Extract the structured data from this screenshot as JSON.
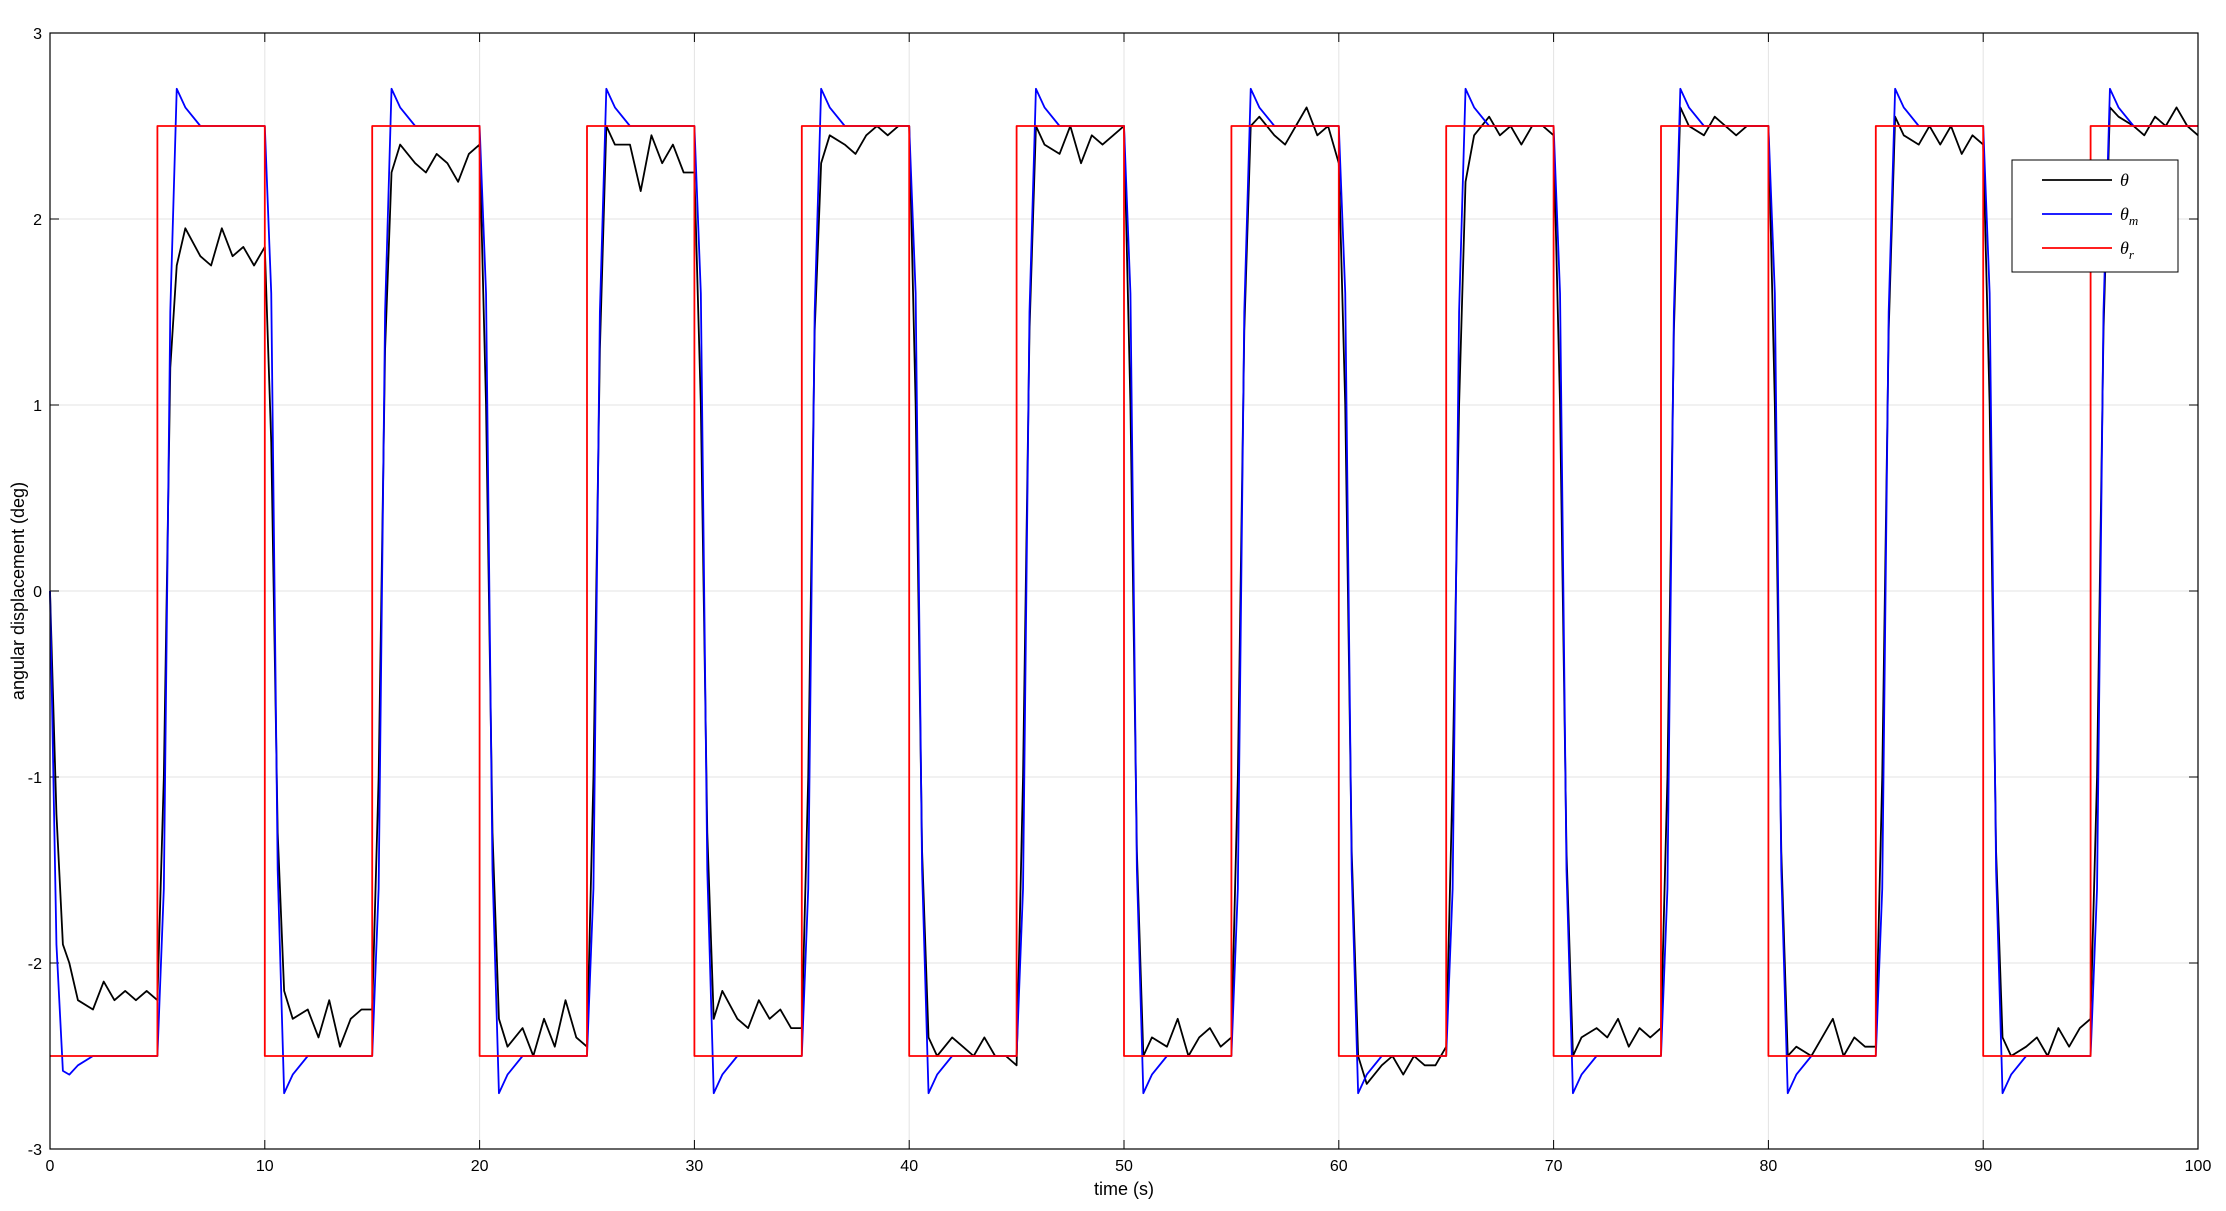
{
  "chart_data": {
    "type": "line",
    "xlabel": "time (s)",
    "ylabel": "angular displacement (deg)",
    "xlim": [
      0,
      100
    ],
    "ylim": [
      -3,
      3
    ],
    "xticks": [
      0,
      10,
      20,
      30,
      40,
      50,
      60,
      70,
      80,
      90,
      100
    ],
    "yticks": [
      -3,
      -2,
      -1,
      0,
      1,
      2,
      3
    ],
    "grid": true,
    "legend": "upper right",
    "x": [
      0,
      0.3,
      0.6,
      0.9,
      1.3,
      2,
      2.5,
      3,
      3.5,
      4,
      4.5,
      5,
      5.3,
      5.6,
      5.9,
      6.3,
      7,
      7.5,
      8,
      8.5,
      9,
      9.5,
      10,
      10.3,
      10.6,
      10.9,
      11.3,
      12,
      12.5,
      13,
      13.5,
      14,
      14.5,
      15,
      15.3,
      15.6,
      15.9,
      16.3,
      17,
      17.5,
      18,
      18.5,
      19,
      19.5,
      20,
      20.3,
      20.6,
      20.9,
      21.3,
      22,
      22.5,
      23,
      23.5,
      24,
      24.5,
      25,
      25.3,
      25.6,
      25.9,
      26.3,
      27,
      27.5,
      28,
      28.5,
      29,
      29.5,
      30,
      30.3,
      30.6,
      30.9,
      31.3,
      32,
      32.5,
      33,
      33.5,
      34,
      34.5,
      35,
      35.3,
      35.6,
      35.9,
      36.3,
      37,
      37.5,
      38,
      38.5,
      39,
      39.5,
      40,
      40.3,
      40.6,
      40.9,
      41.3,
      42,
      42.5,
      43,
      43.5,
      44,
      44.5,
      45,
      45.3,
      45.6,
      45.9,
      46.3,
      47,
      47.5,
      48,
      48.5,
      49,
      49.5,
      50,
      50.3,
      50.6,
      50.9,
      51.3,
      52,
      52.5,
      53,
      53.5,
      54,
      54.5,
      55,
      55.3,
      55.6,
      55.9,
      56.3,
      57,
      57.5,
      58,
      58.5,
      59,
      59.5,
      60,
      60.3,
      60.6,
      60.9,
      61.3,
      62,
      62.5,
      63,
      63.5,
      64,
      64.5,
      65,
      65.3,
      65.6,
      65.9,
      66.3,
      67,
      67.5,
      68,
      68.5,
      69,
      69.5,
      70,
      70.3,
      70.6,
      70.9,
      71.3,
      72,
      72.5,
      73,
      73.5,
      74,
      74.5,
      75,
      75.3,
      75.6,
      75.9,
      76.3,
      77,
      77.5,
      78,
      78.5,
      79,
      79.5,
      80,
      80.3,
      80.6,
      80.9,
      81.3,
      82,
      82.5,
      83,
      83.5,
      84,
      84.5,
      85,
      85.3,
      85.6,
      85.9,
      86.3,
      87,
      87.5,
      88,
      88.5,
      89,
      89.5,
      90,
      90.3,
      90.6,
      90.9,
      91.3,
      92,
      92.5,
      93,
      93.5,
      94,
      94.5,
      95,
      95.3,
      95.6,
      95.9,
      96.3,
      97,
      97.5,
      98,
      98.5,
      99,
      99.5,
      100
    ],
    "series": [
      {
        "name": "θ",
        "color": "#000000",
        "values": [
          0,
          -1.2,
          -1.9,
          -2.0,
          -2.2,
          -2.25,
          -2.1,
          -2.2,
          -2.15,
          -2.2,
          -2.15,
          -2.2,
          -1.0,
          1.2,
          1.75,
          1.95,
          1.8,
          1.75,
          1.95,
          1.8,
          1.85,
          1.75,
          1.85,
          0.8,
          -1.3,
          -2.15,
          -2.3,
          -2.25,
          -2.4,
          -2.2,
          -2.45,
          -2.3,
          -2.25,
          -2.25,
          -1.0,
          1.3,
          2.25,
          2.4,
          2.3,
          2.25,
          2.35,
          2.3,
          2.2,
          2.35,
          2.4,
          1.0,
          -1.3,
          -2.3,
          -2.45,
          -2.35,
          -2.5,
          -2.3,
          -2.45,
          -2.2,
          -2.4,
          -2.45,
          -1.0,
          1.3,
          2.5,
          2.4,
          2.4,
          2.15,
          2.45,
          2.3,
          2.4,
          2.25,
          2.25,
          1.0,
          -1.3,
          -2.3,
          -2.15,
          -2.3,
          -2.35,
          -2.2,
          -2.3,
          -2.25,
          -2.35,
          -2.35,
          -1.0,
          1.4,
          2.3,
          2.45,
          2.4,
          2.35,
          2.45,
          2.5,
          2.45,
          2.5,
          2.5,
          1.0,
          -1.4,
          -2.4,
          -2.5,
          -2.4,
          -2.45,
          -2.5,
          -2.4,
          -2.5,
          -2.5,
          -2.55,
          -1.0,
          1.4,
          2.5,
          2.4,
          2.35,
          2.5,
          2.3,
          2.45,
          2.4,
          2.45,
          2.5,
          1.0,
          -1.4,
          -2.5,
          -2.4,
          -2.45,
          -2.3,
          -2.5,
          -2.4,
          -2.35,
          -2.45,
          -2.4,
          -1.0,
          1.4,
          2.5,
          2.55,
          2.45,
          2.4,
          2.5,
          2.6,
          2.45,
          2.5,
          2.3,
          1.0,
          -1.4,
          -2.5,
          -2.65,
          -2.55,
          -2.5,
          -2.6,
          -2.5,
          -2.55,
          -2.55,
          -2.45,
          -1.0,
          1.0,
          2.2,
          2.45,
          2.55,
          2.45,
          2.5,
          2.4,
          2.5,
          2.5,
          2.45,
          1.0,
          -1.4,
          -2.5,
          -2.4,
          -2.35,
          -2.4,
          -2.3,
          -2.45,
          -2.35,
          -2.4,
          -2.35,
          -1.0,
          1.4,
          2.6,
          2.5,
          2.45,
          2.55,
          2.5,
          2.45,
          2.5,
          2.5,
          2.5,
          1.0,
          -1.4,
          -2.5,
          -2.45,
          -2.5,
          -2.4,
          -2.3,
          -2.5,
          -2.4,
          -2.45,
          -2.45,
          -1.0,
          1.4,
          2.55,
          2.45,
          2.4,
          2.5,
          2.4,
          2.5,
          2.35,
          2.45,
          2.4,
          1.0,
          -1.4,
          -2.4,
          -2.5,
          -2.45,
          -2.4,
          -2.5,
          -2.35,
          -2.45,
          -2.35,
          -2.3,
          -1.0,
          1.4,
          2.6,
          2.55,
          2.5,
          2.45,
          2.55,
          2.5,
          2.6,
          2.5,
          2.45
        ]
      },
      {
        "name": "θm",
        "color": "#0000ff",
        "values": [
          0,
          -1.9,
          -2.58,
          -2.6,
          -2.55,
          -2.5,
          -2.5,
          -2.5,
          -2.5,
          -2.5,
          -2.5,
          -2.5,
          -1.6,
          1.5,
          2.7,
          2.6,
          2.5,
          2.5,
          2.5,
          2.5,
          2.5,
          2.5,
          2.5,
          1.6,
          -1.5,
          -2.7,
          -2.6,
          -2.5,
          -2.5,
          -2.5,
          -2.5,
          -2.5,
          -2.5,
          -2.5,
          -1.6,
          1.5,
          2.7,
          2.6,
          2.5,
          2.5,
          2.5,
          2.5,
          2.5,
          2.5,
          2.5,
          1.6,
          -1.5,
          -2.7,
          -2.6,
          -2.5,
          -2.5,
          -2.5,
          -2.5,
          -2.5,
          -2.5,
          -2.5,
          -1.6,
          1.5,
          2.7,
          2.6,
          2.5,
          2.5,
          2.5,
          2.5,
          2.5,
          2.5,
          2.5,
          1.6,
          -1.5,
          -2.7,
          -2.6,
          -2.5,
          -2.5,
          -2.5,
          -2.5,
          -2.5,
          -2.5,
          -2.5,
          -1.6,
          1.5,
          2.7,
          2.6,
          2.5,
          2.5,
          2.5,
          2.5,
          2.5,
          2.5,
          2.5,
          1.6,
          -1.5,
          -2.7,
          -2.6,
          -2.5,
          -2.5,
          -2.5,
          -2.5,
          -2.5,
          -2.5,
          -2.5,
          -1.6,
          1.5,
          2.7,
          2.6,
          2.5,
          2.5,
          2.5,
          2.5,
          2.5,
          2.5,
          2.5,
          1.6,
          -1.5,
          -2.7,
          -2.6,
          -2.5,
          -2.5,
          -2.5,
          -2.5,
          -2.5,
          -2.5,
          -2.5,
          -1.6,
          1.5,
          2.7,
          2.6,
          2.5,
          2.5,
          2.5,
          2.5,
          2.5,
          2.5,
          2.5,
          1.6,
          -1.5,
          -2.7,
          -2.6,
          -2.5,
          -2.5,
          -2.5,
          -2.5,
          -2.5,
          -2.5,
          -2.5,
          -1.6,
          1.5,
          2.7,
          2.6,
          2.5,
          2.5,
          2.5,
          2.5,
          2.5,
          2.5,
          2.5,
          1.6,
          -1.5,
          -2.7,
          -2.6,
          -2.5,
          -2.5,
          -2.5,
          -2.5,
          -2.5,
          -2.5,
          -2.5,
          -1.6,
          1.5,
          2.7,
          2.6,
          2.5,
          2.5,
          2.5,
          2.5,
          2.5,
          2.5,
          2.5,
          1.6,
          -1.5,
          -2.7,
          -2.6,
          -2.5,
          -2.5,
          -2.5,
          -2.5,
          -2.5,
          -2.5,
          -2.5,
          -1.6,
          1.5,
          2.7,
          2.6,
          2.5,
          2.5,
          2.5,
          2.5,
          2.5,
          2.5,
          2.5,
          1.6,
          -1.5,
          -2.7,
          -2.6,
          -2.5,
          -2.5,
          -2.5,
          -2.5,
          -2.5,
          -2.5,
          -2.5,
          -1.6,
          1.5,
          2.7,
          2.6,
          2.5,
          2.5,
          2.5,
          2.5,
          2.5,
          2.5,
          2.5
        ]
      },
      {
        "name": "θr",
        "color": "#ff0000",
        "x": [
          0,
          5,
          5,
          10,
          10,
          15,
          15,
          20,
          20,
          25,
          25,
          30,
          30,
          35,
          35,
          40,
          40,
          45,
          45,
          50,
          50,
          55,
          55,
          60,
          60,
          65,
          65,
          70,
          70,
          75,
          75,
          80,
          80,
          85,
          85,
          90,
          90,
          95,
          95,
          100
        ],
        "values": [
          -2.5,
          -2.5,
          2.5,
          2.5,
          -2.5,
          -2.5,
          2.5,
          2.5,
          -2.5,
          -2.5,
          2.5,
          2.5,
          -2.5,
          -2.5,
          2.5,
          2.5,
          -2.5,
          -2.5,
          2.5,
          2.5,
          -2.5,
          -2.5,
          2.5,
          2.5,
          -2.5,
          -2.5,
          2.5,
          2.5,
          -2.5,
          -2.5,
          2.5,
          2.5,
          -2.5,
          -2.5,
          2.5,
          2.5,
          -2.5,
          -2.5,
          2.5,
          2.5
        ]
      }
    ]
  }
}
